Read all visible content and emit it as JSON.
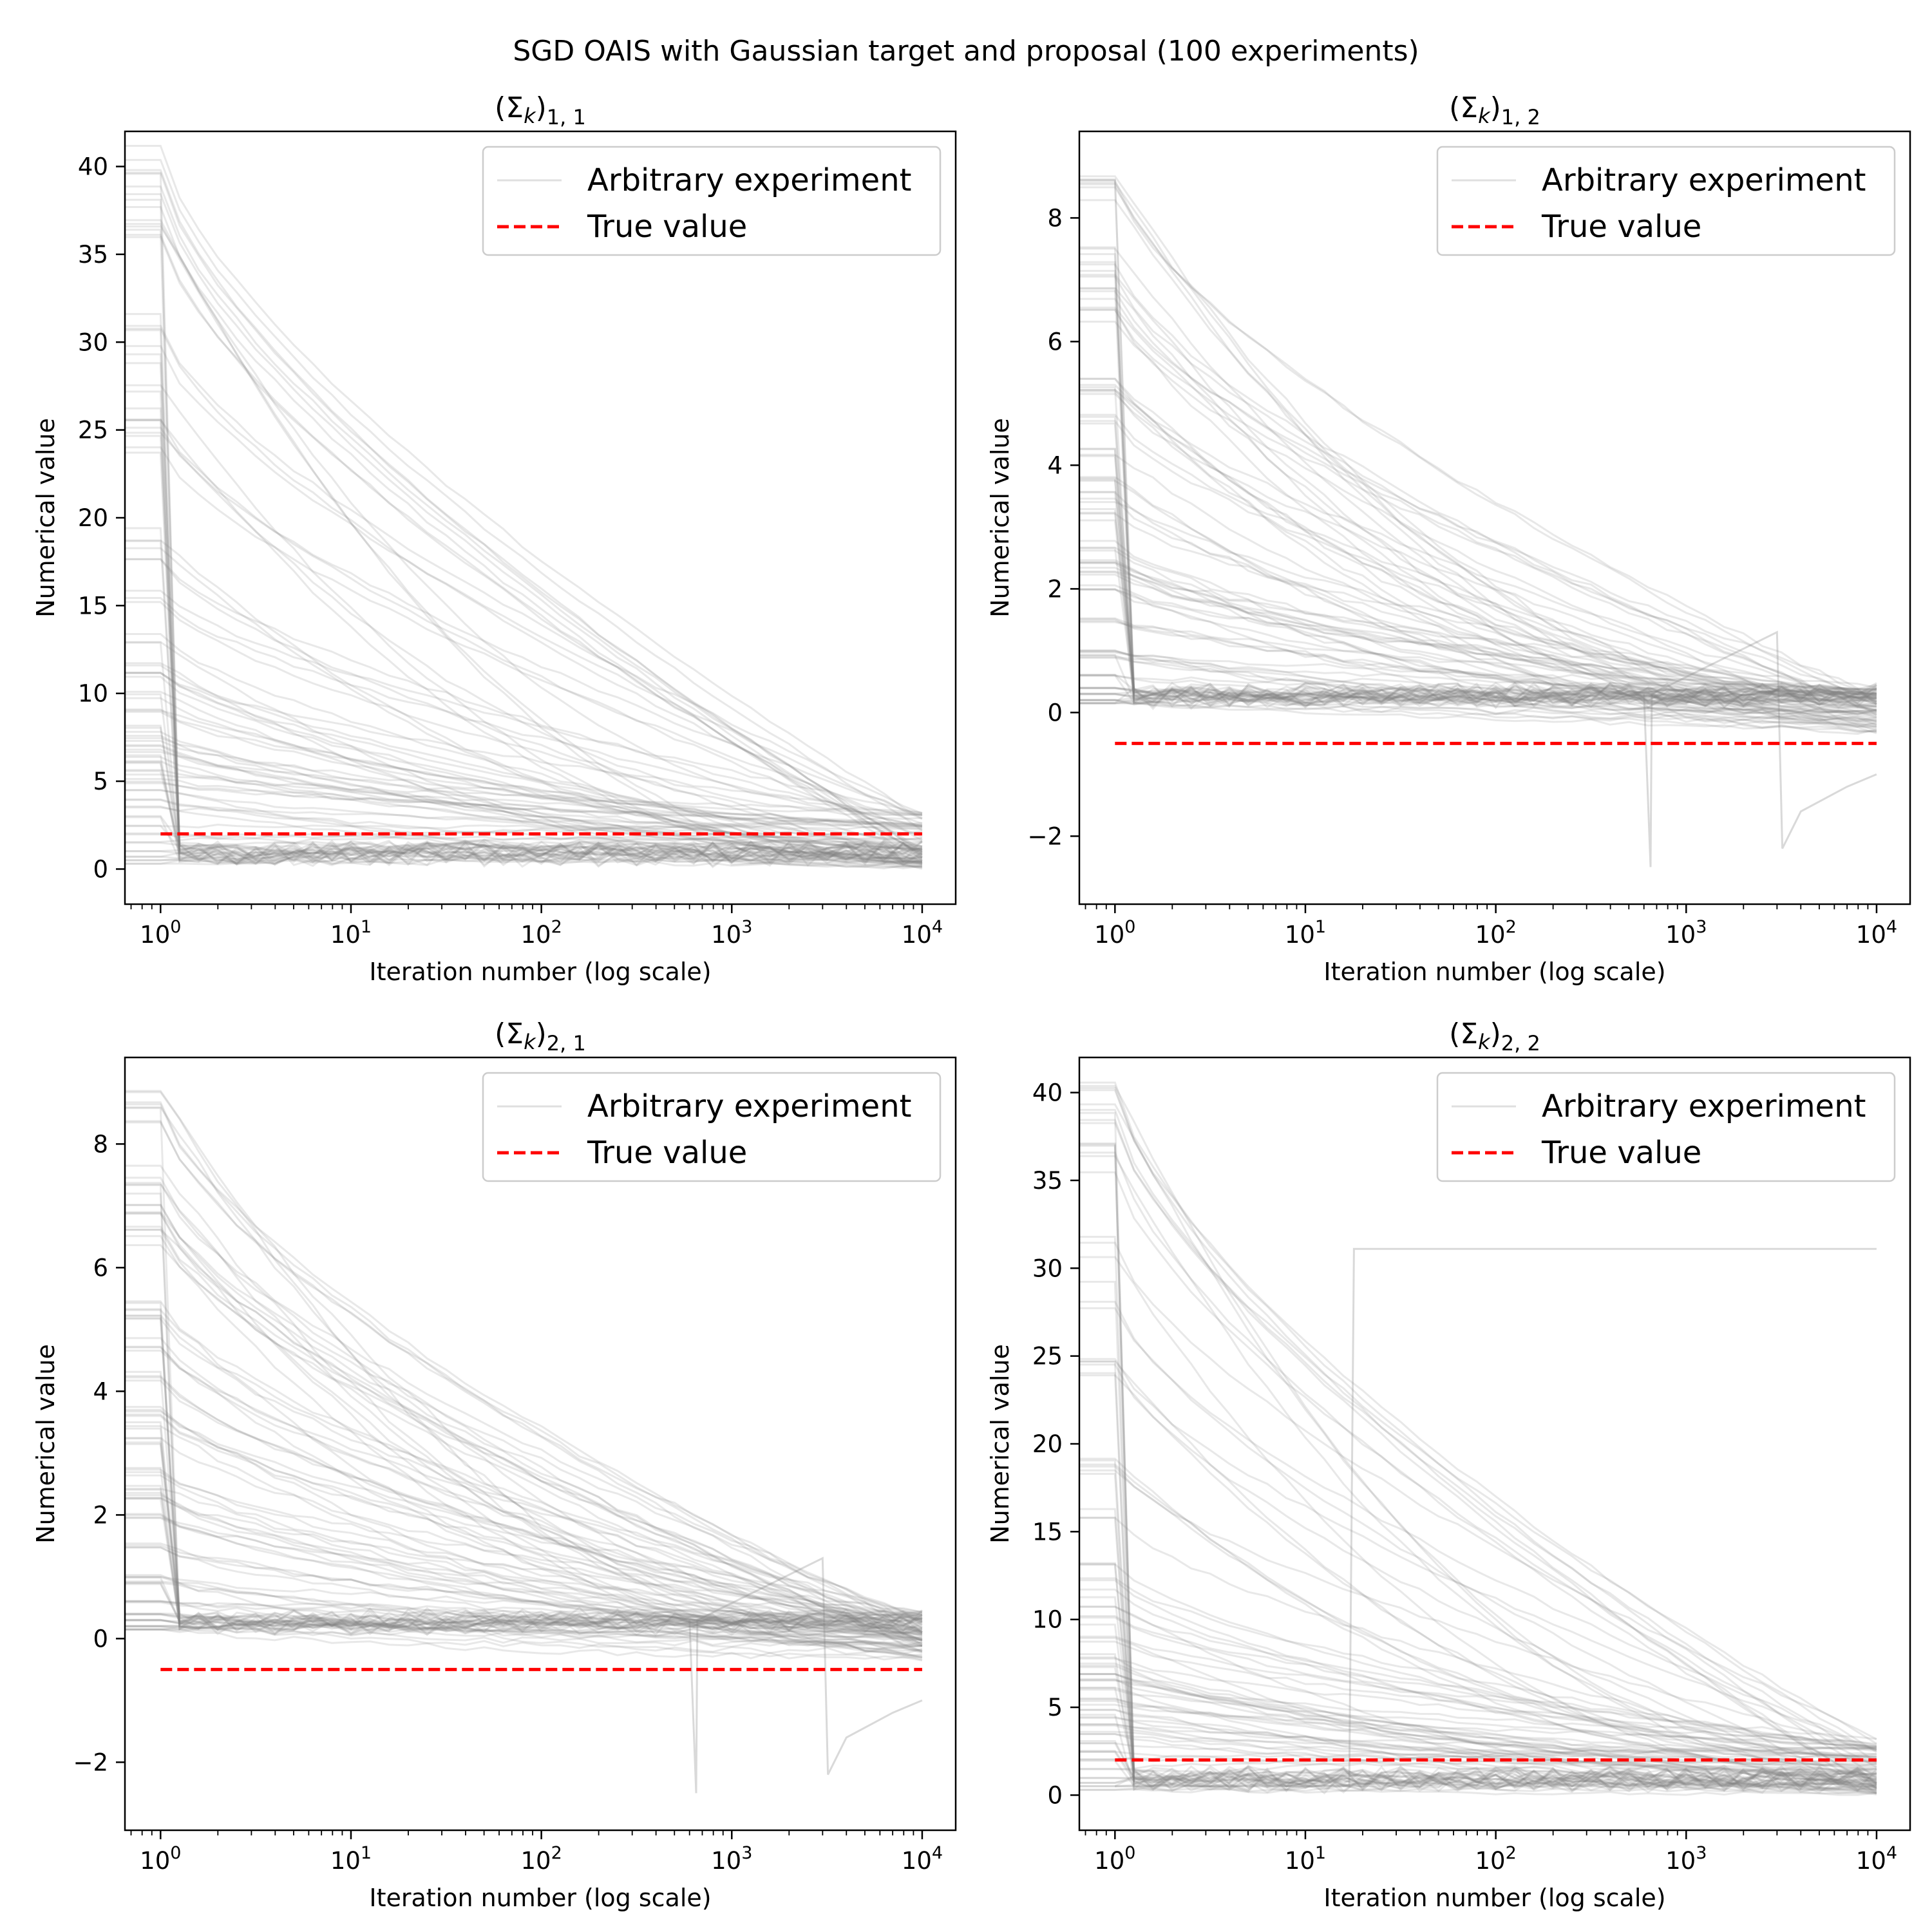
{
  "figure": {
    "suptitle": "SGD OAIS with Gaussian target and proposal (100 experiments)"
  },
  "colors": {
    "experiment_line": "#808080",
    "true_value_line": "#ff0000",
    "axes": "#000000",
    "legend_border": "#cccccc",
    "background": "#ffffff"
  },
  "chart_data": [
    {
      "type": "line",
      "title": "(Σk)1,1",
      "title_parts": {
        "base": "(Σ",
        "sub1": "k",
        "close": ")",
        "sub2": "1, 1"
      },
      "xlabel": "Iteration number (log scale)",
      "ylabel": "Numerical value",
      "xscale": "log",
      "xlim": [
        0.65,
        15000
      ],
      "ylim": [
        -2,
        42
      ],
      "xticks": [
        1,
        10,
        100,
        1000,
        10000
      ],
      "xtick_labels": [
        {
          "base": "10",
          "exp": "0"
        },
        {
          "base": "10",
          "exp": "1"
        },
        {
          "base": "10",
          "exp": "2"
        },
        {
          "base": "10",
          "exp": "3"
        },
        {
          "base": "10",
          "exp": "4"
        }
      ],
      "yticks": [
        0,
        5,
        10,
        15,
        20,
        25,
        30,
        35,
        40
      ],
      "ytick_labels": [
        "0",
        "5",
        "10",
        "15",
        "20",
        "25",
        "30",
        "35",
        "40"
      ],
      "legend": {
        "position": "upper right",
        "entries": [
          "Arbitrary experiment",
          "True value"
        ]
      },
      "series": [
        {
          "name": "True value",
          "style": "dashed",
          "x": [
            1,
            10000
          ],
          "y": [
            2,
            2
          ]
        },
        {
          "name": "Arbitrary experiment",
          "style": "ensemble",
          "count": 100,
          "start_values": [
            40,
            39.5,
            38,
            37,
            36,
            31,
            30,
            28,
            25.7,
            25.4,
            24,
            19,
            18,
            15.5,
            13,
            11.5,
            11,
            10,
            9,
            8,
            7.5,
            7,
            6.5,
            6,
            5.5,
            5,
            4.5,
            4,
            3.5,
            3,
            2.5,
            2,
            1.5,
            1,
            0.7,
            0.5,
            0.3
          ],
          "end_values": [
            3.2,
            3.0,
            2.8,
            2.6,
            2.4,
            2.2,
            2.0,
            1.8,
            1.5,
            1.2,
            1.0,
            0.8,
            0.6,
            0.4,
            0.3,
            0.2,
            0.1
          ]
        }
      ]
    },
    {
      "type": "line",
      "title": "(Σk)1,2",
      "title_parts": {
        "base": "(Σ",
        "sub1": "k",
        "close": ")",
        "sub2": "1, 2"
      },
      "xlabel": "Iteration number (log scale)",
      "ylabel": "Numerical value",
      "xscale": "log",
      "xlim": [
        0.65,
        15000
      ],
      "ylim": [
        -3.1,
        9.4
      ],
      "xticks": [
        1,
        10,
        100,
        1000,
        10000
      ],
      "xtick_labels": [
        {
          "base": "10",
          "exp": "0"
        },
        {
          "base": "10",
          "exp": "1"
        },
        {
          "base": "10",
          "exp": "2"
        },
        {
          "base": "10",
          "exp": "3"
        },
        {
          "base": "10",
          "exp": "4"
        }
      ],
      "yticks": [
        -2,
        0,
        2,
        4,
        6,
        8
      ],
      "ytick_labels": [
        "−2",
        "0",
        "2",
        "4",
        "6",
        "8"
      ],
      "legend": {
        "position": "upper right",
        "entries": [
          "Arbitrary experiment",
          "True value"
        ]
      },
      "series": [
        {
          "name": "True value",
          "style": "dashed",
          "x": [
            1,
            10000
          ],
          "y": [
            -0.5,
            -0.5
          ]
        },
        {
          "name": "Arbitrary experiment",
          "style": "ensemble",
          "count": 100,
          "start_values": [
            8.8,
            8.5,
            7.5,
            7.2,
            6.7,
            6.5,
            5.3,
            5.2,
            4.8,
            4.2,
            3.7,
            3.5,
            3.2,
            2.7,
            2.4,
            2.3,
            2.0,
            1.5,
            1.0,
            0.9,
            0.6,
            0.4,
            0.3,
            0.2,
            0.15
          ],
          "end_values": [
            0.4,
            0.3,
            0.2,
            0.1,
            0.0,
            -0.1,
            -0.2,
            -0.3
          ],
          "outlier": {
            "x": [
              600,
              650,
              660,
              3000,
              3200,
              4000,
              7000,
              10000
            ],
            "y": [
              0.3,
              -2.5,
              0.3,
              1.3,
              -2.2,
              -1.6,
              -1.2,
              -1.0
            ]
          }
        }
      ]
    },
    {
      "type": "line",
      "title": "(Σk)2,1",
      "title_parts": {
        "base": "(Σ",
        "sub1": "k",
        "close": ")",
        "sub2": "2, 1"
      },
      "xlabel": "Iteration number (log scale)",
      "ylabel": "Numerical value",
      "xscale": "log",
      "xlim": [
        0.65,
        15000
      ],
      "ylim": [
        -3.1,
        9.4
      ],
      "xticks": [
        1,
        10,
        100,
        1000,
        10000
      ],
      "xtick_labels": [
        {
          "base": "10",
          "exp": "0"
        },
        {
          "base": "10",
          "exp": "1"
        },
        {
          "base": "10",
          "exp": "2"
        },
        {
          "base": "10",
          "exp": "3"
        },
        {
          "base": "10",
          "exp": "4"
        }
      ],
      "yticks": [
        -2,
        0,
        2,
        4,
        6,
        8
      ],
      "ytick_labels": [
        "−2",
        "0",
        "2",
        "4",
        "6",
        "8"
      ],
      "legend": {
        "position": "upper right",
        "entries": [
          "Arbitrary experiment",
          "True value"
        ]
      },
      "series": [
        {
          "name": "True value",
          "style": "dashed",
          "x": [
            1,
            10000
          ],
          "y": [
            -0.5,
            -0.5
          ]
        },
        {
          "name": "Arbitrary experiment",
          "style": "ensemble",
          "count": 100,
          "start_values": [
            8.8,
            8.5,
            7.5,
            7.2,
            6.7,
            6.5,
            5.3,
            5.2,
            4.8,
            4.2,
            3.7,
            3.5,
            3.2,
            2.7,
            2.4,
            2.3,
            2.0,
            1.5,
            1.0,
            0.9,
            0.6,
            0.4,
            0.3,
            0.2,
            0.15
          ],
          "end_values": [
            0.4,
            0.3,
            0.2,
            0.1,
            0.0,
            -0.1,
            -0.2,
            -0.3
          ],
          "outlier": {
            "x": [
              600,
              650,
              660,
              3000,
              3200,
              4000,
              7000,
              10000
            ],
            "y": [
              0.3,
              -2.5,
              0.3,
              1.3,
              -2.2,
              -1.6,
              -1.2,
              -1.0
            ]
          }
        }
      ]
    },
    {
      "type": "line",
      "title": "(Σk)2,2",
      "title_parts": {
        "base": "(Σ",
        "sub1": "k",
        "close": ")",
        "sub2": "2, 2"
      },
      "xlabel": "Iteration number (log scale)",
      "ylabel": "Numerical value",
      "xscale": "log",
      "xlim": [
        0.65,
        15000
      ],
      "ylim": [
        -2,
        42
      ],
      "xticks": [
        1,
        10,
        100,
        1000,
        10000
      ],
      "xtick_labels": [
        {
          "base": "10",
          "exp": "0"
        },
        {
          "base": "10",
          "exp": "1"
        },
        {
          "base": "10",
          "exp": "2"
        },
        {
          "base": "10",
          "exp": "3"
        },
        {
          "base": "10",
          "exp": "4"
        }
      ],
      "yticks": [
        0,
        5,
        10,
        15,
        20,
        25,
        30,
        35,
        40
      ],
      "ytick_labels": [
        "0",
        "5",
        "10",
        "15",
        "20",
        "25",
        "30",
        "35",
        "40"
      ],
      "legend": {
        "position": "upper right",
        "entries": [
          "Arbitrary experiment",
          "True value"
        ]
      },
      "series": [
        {
          "name": "True value",
          "style": "dashed",
          "x": [
            1,
            10000
          ],
          "y": [
            2,
            2
          ]
        },
        {
          "name": "Arbitrary experiment",
          "style": "ensemble",
          "count": 100,
          "start_values": [
            40,
            39.5,
            38,
            37,
            36,
            31.5,
            28.5,
            25,
            24.5,
            19,
            18.5,
            16,
            13,
            12,
            11,
            10,
            9,
            8,
            7.5,
            7,
            6.5,
            6,
            5.5,
            5,
            4.5,
            4,
            3.5,
            3,
            2.5,
            2,
            1.5,
            1,
            0.7,
            0.5,
            0.3
          ],
          "end_values": [
            3.2,
            3.0,
            2.8,
            2.6,
            2.4,
            2.2,
            2.0,
            1.8,
            1.5,
            1.2,
            1.0,
            0.8,
            0.6,
            0.4,
            0.3,
            0.2,
            0.1
          ],
          "outlier": {
            "x": [
              1,
              17,
              18,
              10000
            ],
            "y": [
              0.5,
              0.5,
              31.1,
              31.1
            ]
          }
        }
      ]
    }
  ]
}
